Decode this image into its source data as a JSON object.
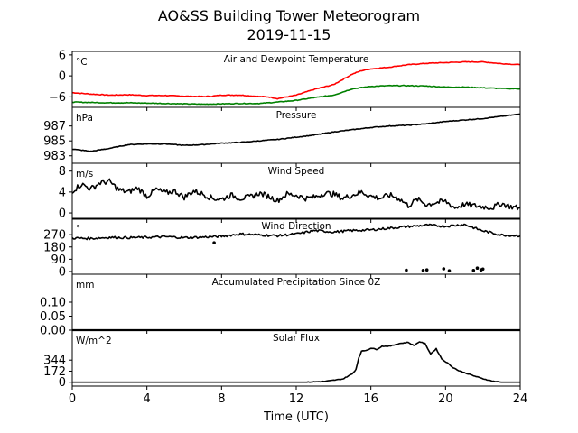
{
  "title": "AO&SS Building Tower Meteorogram",
  "subtitle": "2019-11-15",
  "chart_data": {
    "type": "line",
    "xlabel": "Time (UTC)",
    "xlim": [
      0,
      24
    ],
    "xticks": [
      0,
      4,
      8,
      12,
      16,
      20,
      24
    ],
    "panels": [
      {
        "title": "Air and Dewpoint Temperature",
        "unit": "°C",
        "ylim": [
          -9,
          7
        ],
        "yticks": [
          -6,
          0,
          6
        ],
        "yticklabels": [
          "−6",
          "0",
          "6"
        ],
        "series": [
          {
            "color": "#ff0000",
            "style": "line",
            "x": [
              0,
              1,
              2,
              3,
              4,
              5,
              6,
              7,
              7.5,
              8,
              9,
              10,
              10.5,
              11,
              11.5,
              12,
              13,
              14,
              15,
              15.5,
              16,
              17,
              18,
              19,
              20,
              21,
              22,
              23,
              24
            ],
            "y": [
              -4.8,
              -5.2,
              -5.5,
              -5.4,
              -5.6,
              -5.6,
              -5.8,
              -5.9,
              -5.8,
              -5.5,
              -5.5,
              -5.9,
              -6.0,
              -6.5,
              -6.0,
              -5.5,
              -3.8,
              -2.5,
              0.5,
              1.5,
              2.0,
              2.5,
              3.2,
              3.6,
              3.8,
              4.0,
              4.0,
              3.5,
              3.2
            ]
          },
          {
            "color": "#008000",
            "style": "line",
            "x": [
              0,
              1,
              2,
              3,
              4,
              5,
              6,
              7,
              8,
              9,
              10,
              11,
              12,
              13,
              14,
              15,
              16,
              17,
              18,
              19,
              20,
              21,
              22,
              23,
              24
            ],
            "y": [
              -7.5,
              -7.6,
              -7.7,
              -7.7,
              -7.8,
              -7.9,
              -8.0,
              -8.1,
              -8.0,
              -7.9,
              -7.9,
              -7.5,
              -7.0,
              -6.2,
              -5.5,
              -3.7,
              -3.0,
              -2.8,
              -2.8,
              -2.9,
              -3.2,
              -3.2,
              -3.4,
              -3.6,
              -3.7
            ]
          }
        ]
      },
      {
        "title": "Pressure",
        "unit": "hPa",
        "ylim": [
          982.0,
          989.5
        ],
        "yticks": [
          983,
          985,
          987
        ],
        "yticklabels": [
          "983",
          "985",
          "987"
        ],
        "series": [
          {
            "color": "#000000",
            "style": "line",
            "x": [
              0,
              1,
              2,
              3,
              4,
              5,
              6,
              7,
              8,
              9,
              10,
              11,
              12,
              13,
              14,
              15,
              16,
              17,
              18,
              19,
              20,
              21,
              22,
              23,
              24
            ],
            "y": [
              983.9,
              983.6,
              984.0,
              984.5,
              984.6,
              984.6,
              984.4,
              984.5,
              984.7,
              984.8,
              985.0,
              985.2,
              985.5,
              985.8,
              986.2,
              986.5,
              986.8,
              987.0,
              987.1,
              987.3,
              987.6,
              987.8,
              988.0,
              988.3,
              988.6
            ]
          }
        ]
      },
      {
        "title": "Wind Speed",
        "unit": "m/s",
        "ylim": [
          -1.2,
          9.5
        ],
        "yticks": [
          0,
          4,
          8
        ],
        "yticklabels": [
          "0",
          "4",
          "8"
        ],
        "series": [
          {
            "color": "#000000",
            "style": "line",
            "x": [
              0,
              0.5,
              1,
              1.5,
              2,
              2.5,
              3,
              3.5,
              4,
              4.5,
              5,
              5.5,
              6,
              6.5,
              7,
              7.5,
              8,
              8.5,
              9,
              9.5,
              10,
              10.5,
              11,
              11.5,
              12,
              12.5,
              13,
              13.5,
              14,
              14.5,
              15,
              15.5,
              16,
              16.5,
              17,
              17.5,
              18,
              18.5,
              19,
              19.5,
              20,
              20.5,
              21,
              21.5,
              22,
              22.5,
              23,
              23.5,
              24
            ],
            "y": [
              4.2,
              5.5,
              4.6,
              5.8,
              6.0,
              4.4,
              4.0,
              4.8,
              3.2,
              4.5,
              3.8,
              4.2,
              3.0,
              4.2,
              3.6,
              2.8,
              2.6,
              3.4,
              2.8,
              3.0,
              3.8,
              3.2,
              2.4,
              3.6,
              3.4,
              2.8,
              3.0,
              3.8,
              3.6,
              2.8,
              3.4,
              4.0,
              3.2,
              2.8,
              3.4,
              2.8,
              1.4,
              2.6,
              1.6,
              2.0,
              2.2,
              1.0,
              1.6,
              1.4,
              1.2,
              1.0,
              1.8,
              1.2,
              0.9
            ]
          }
        ]
      },
      {
        "title": "Wind Direction",
        "unit": "°",
        "ylim": [
          -20,
          390
        ],
        "yticks": [
          0,
          90,
          180,
          270
        ],
        "yticklabels": [
          "0",
          "90",
          "180",
          "270"
        ],
        "series": [
          {
            "color": "#000000",
            "style": "line",
            "x": [
              0,
              1,
              2,
              3,
              4,
              5,
              6,
              7,
              8,
              9,
              10,
              11,
              12,
              13,
              14,
              15,
              16,
              17,
              18,
              19,
              20,
              21,
              22,
              23,
              24
            ],
            "y": [
              245,
              242,
              250,
              248,
              250,
              255,
              248,
              252,
              258,
              275,
              268,
              262,
              275,
              300,
              290,
              300,
              305,
              318,
              330,
              340,
              332,
              345,
              298,
              268,
              262
            ]
          },
          {
            "color": "#000000",
            "style": "dots",
            "x": [
              7.6,
              17.9,
              18.8,
              19.0,
              19.9,
              20.2,
              21.5,
              21.7,
              21.9,
              22.0
            ],
            "y": [
              210,
              10,
              8,
              12,
              20,
              5,
              8,
              25,
              12,
              18
            ]
          }
        ]
      },
      {
        "title": "Accumulated Precipitation Since 0Z",
        "unit": "mm",
        "ylim": [
          0,
          0.2
        ],
        "yticks": [
          0.0,
          0.05,
          0.1
        ],
        "yticklabels": [
          "0.00",
          "0.05",
          "0.10"
        ],
        "series": [
          {
            "color": "#000000",
            "style": "line",
            "x": [
              0,
              24
            ],
            "y": [
              0,
              0
            ]
          }
        ]
      },
      {
        "title": "Solar Flux",
        "unit": "W/m^2",
        "ylim": [
          -60,
          810
        ],
        "yticks": [
          0,
          172,
          344
        ],
        "yticklabels": [
          "0",
          "172",
          "344"
        ],
        "series": [
          {
            "color": "#000000",
            "style": "line",
            "x": [
              0,
              12.5,
              13.5,
              14.5,
              15.0,
              15.2,
              15.35,
              15.5,
              15.8,
              16.0,
              16.3,
              16.6,
              17.0,
              17.5,
              18.0,
              18.3,
              18.6,
              18.9,
              19.2,
              19.5,
              19.8,
              20.1,
              20.4,
              20.7,
              21.0,
              21.5,
              22.0,
              22.5,
              23.0,
              24
            ],
            "y": [
              0,
              0,
              12,
              50,
              130,
              200,
              380,
              480,
              500,
              530,
              510,
              560,
              560,
              600,
              620,
              570,
              630,
              600,
              440,
              520,
              360,
              300,
              230,
              180,
              150,
              100,
              55,
              18,
              0,
              0
            ]
          }
        ]
      }
    ]
  }
}
